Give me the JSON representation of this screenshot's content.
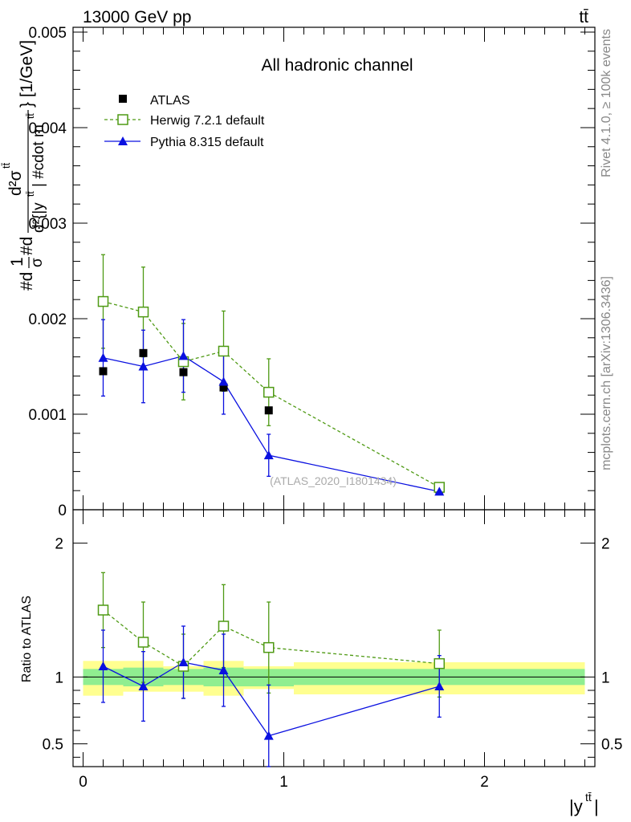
{
  "header": {
    "energy_label": "13000 GeV pp",
    "process_label": "tt̄"
  },
  "side_labels": {
    "rivet": "Rivet 4.1.0, ≥ 100k events",
    "mcplots": "mcplots.cern.ch [arXiv:1306.3436]"
  },
  "chart_data": {
    "type": "line",
    "title": "All hadronic channel",
    "watermark": "(ATLAS_2020_I1801434)",
    "ylabel": "#d{1}{σ}#d{d²σ^{tt̄}}{d²{|y^{tt̄}| #cdot m^{tt̄}}} [1/GeV]",
    "ylabel_display": {
      "prefix": "#d",
      "frac1_num": "1",
      "frac1_den": "σ",
      "mid": "#d",
      "frac2_num": "d²σ",
      "frac2_num_sup": "tt̄",
      "frac2_den": "d²{|y",
      "frac2_den_sup": "tt̄",
      "frac2_den_rest": "| #cdot m",
      "frac2_den_sup2": "tt̄",
      "suffix": "} [1/GeV]"
    },
    "xlabel": "|y",
    "xlabel_sup": "tt̄",
    "xlabel_end": "|",
    "ratio_ylabel": "Ratio to ATLAS",
    "xlim": [
      -0.05,
      2.55
    ],
    "ylim_main": [
      0,
      0.00505
    ],
    "ylim_ratio": [
      0.33,
      2.25
    ],
    "main_yticks": [
      {
        "v": 0,
        "label": "0"
      },
      {
        "v": 0.001,
        "label": "0.001"
      },
      {
        "v": 0.002,
        "label": "0.002"
      },
      {
        "v": 0.003,
        "label": "0.003"
      },
      {
        "v": 0.004,
        "label": "0.004"
      },
      {
        "v": 0.005,
        "label": "0.005"
      }
    ],
    "ratio_yticks": [
      {
        "v": 0.5,
        "label": "0.5"
      },
      {
        "v": 1,
        "label": "1"
      },
      {
        "v": 2,
        "label": "2"
      }
    ],
    "xticks": [
      {
        "v": 0,
        "label": "0"
      },
      {
        "v": 1,
        "label": "1"
      },
      {
        "v": 2,
        "label": "2"
      }
    ],
    "bins": [
      {
        "lo": 0.0,
        "hi": 0.2
      },
      {
        "lo": 0.2,
        "hi": 0.4
      },
      {
        "lo": 0.4,
        "hi": 0.6
      },
      {
        "lo": 0.6,
        "hi": 0.8
      },
      {
        "lo": 0.8,
        "hi": 1.05
      },
      {
        "lo": 1.05,
        "hi": 2.5
      }
    ],
    "data_band_inner": [
      [
        0.94,
        1.06
      ],
      [
        0.93,
        1.07
      ],
      [
        0.94,
        1.06
      ],
      [
        0.93,
        1.07
      ],
      [
        0.93,
        1.06
      ],
      [
        0.94,
        1.06
      ]
    ],
    "data_band_outer": [
      [
        0.86,
        1.12
      ],
      [
        0.89,
        1.12
      ],
      [
        0.89,
        1.08
      ],
      [
        0.86,
        1.12
      ],
      [
        0.91,
        1.08
      ],
      [
        0.87,
        1.11
      ]
    ],
    "series": [
      {
        "name": "ATLAS",
        "style": "data",
        "color": "#000000",
        "x": [
          0.1,
          0.3,
          0.5,
          0.7,
          0.925,
          1.775
        ],
        "y": [
          0.00145,
          0.00164,
          0.00144,
          0.00128,
          0.00104,
          0.000215
        ]
      },
      {
        "name": "Herwig 7.2.1 default",
        "style": "open-square-dashed",
        "color": "#4f9a14",
        "x": [
          0.1,
          0.3,
          0.5,
          0.7,
          0.925,
          1.775
        ],
        "y": [
          0.00218,
          0.00207,
          0.00155,
          0.00166,
          0.00123,
          0.000235
        ],
        "err": [
          0.00049,
          0.00047,
          0.0004,
          0.00042,
          0.00035,
          4e-05
        ],
        "ratio": [
          1.5,
          1.26,
          1.08,
          1.38,
          1.22,
          1.1
        ],
        "ratio_err": [
          0.28,
          0.3,
          0.24,
          0.31,
          0.34,
          0.25
        ]
      },
      {
        "name": "Pythia 8.315 default",
        "style": "filled-triangle-solid",
        "color": "#0a10e0",
        "x": [
          0.1,
          0.3,
          0.5,
          0.7,
          0.925,
          1.775
        ],
        "y": [
          0.00159,
          0.0015,
          0.00161,
          0.00134,
          0.00057,
          0.00019
        ],
        "err": [
          0.0004,
          0.00038,
          0.00038,
          0.00034,
          0.00022,
          3e-05
        ],
        "ratio": [
          1.08,
          0.93,
          1.11,
          1.05,
          0.56,
          0.93
        ],
        "ratio_err": [
          0.27,
          0.26,
          0.27,
          0.27,
          0.38,
          0.23
        ]
      }
    ],
    "band_colors": {
      "inner": "#90ee90",
      "outer": "#ffff90"
    }
  }
}
